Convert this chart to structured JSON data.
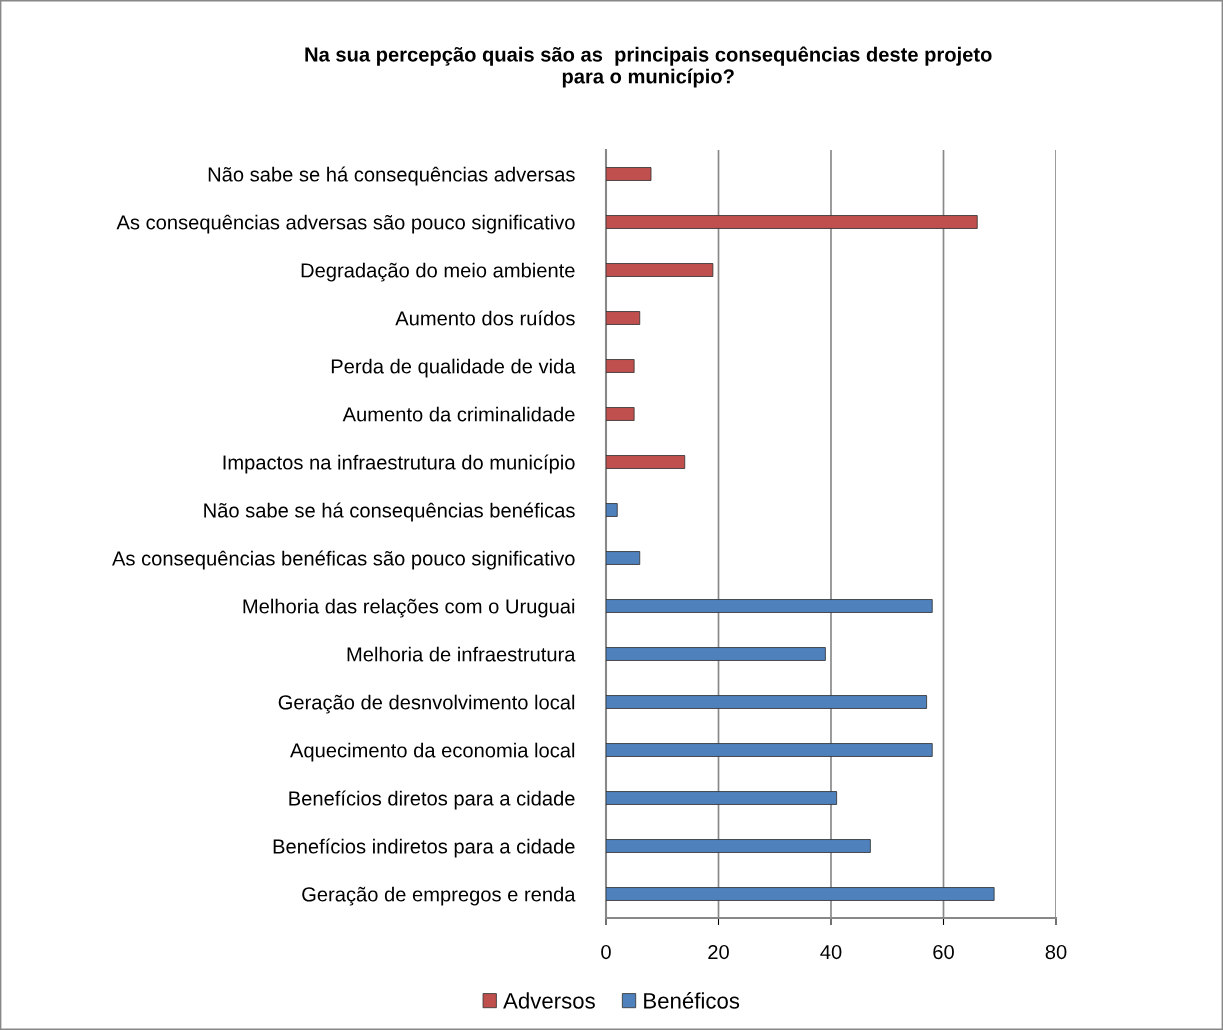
{
  "chart_data": {
    "type": "bar",
    "orientation": "horizontal",
    "title": "Na sua percepção quais são as  principais consequências deste projeto\npara o município?",
    "categories": [
      "Não sabe se há consequências adversas",
      "As consequências adversas são pouco significativo",
      "Degradação do meio ambiente",
      "Aumento dos ruídos",
      "Perda de qualidade de vida",
      "Aumento da criminalidade",
      "Impactos na infraestrutura do município",
      "Não sabe se há consequências benéficas",
      "As consequências benéficas são pouco significativo",
      "Melhoria das relações com o Uruguai",
      "Melhoria de infraestrutura",
      "Geração de desnvolvimento local",
      "Aquecimento da economia local",
      "Benefícios diretos para a cidade",
      "Benefícios indiretos para a cidade",
      "Geração de empregos e renda"
    ],
    "series": [
      {
        "name": "Adversos",
        "color": "#c0504d",
        "values": [
          8,
          66,
          19,
          6,
          5,
          5,
          14,
          null,
          null,
          null,
          null,
          null,
          null,
          null,
          null,
          null
        ]
      },
      {
        "name": "Benéficos",
        "color": "#4f81bd",
        "values": [
          null,
          null,
          null,
          null,
          null,
          null,
          null,
          2,
          6,
          58,
          39,
          57,
          58,
          41,
          47,
          69
        ]
      }
    ],
    "xlim": [
      0,
      80
    ],
    "xticks": [
      0,
      20,
      40,
      60,
      80
    ],
    "grid": "x",
    "legend": "bottom"
  }
}
